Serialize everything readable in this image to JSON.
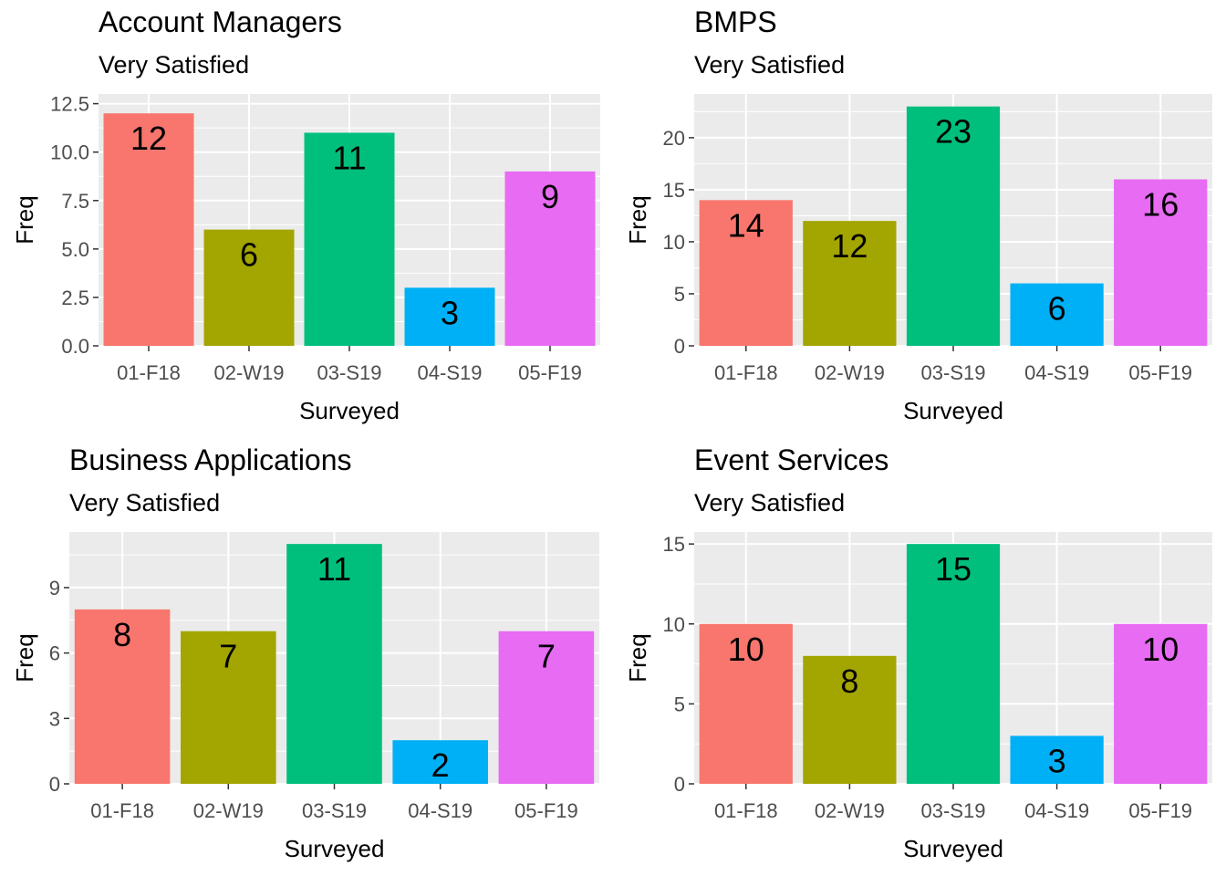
{
  "chart_data": [
    {
      "type": "bar",
      "title": "Account Managers",
      "subtitle": "Very Satisfied",
      "xlabel": "Surveyed",
      "ylabel": "Freq",
      "categories": [
        "01-F18",
        "02-W19",
        "03-S19",
        "04-S19",
        "05-F19"
      ],
      "values": [
        12,
        6,
        11,
        3,
        9
      ],
      "data_labels": [
        "12",
        "6",
        "11",
        "3",
        "9"
      ],
      "yticks": [
        0,
        2.5,
        5,
        7.5,
        10,
        12.5
      ],
      "ytick_labels": [
        "0.0",
        "2.5",
        "5.0",
        "7.5",
        "10.0",
        "12.5"
      ],
      "ylim": [
        0,
        13
      ],
      "grid": true,
      "legend": "none"
    },
    {
      "type": "bar",
      "title": "BMPS",
      "subtitle": "Very Satisfied",
      "xlabel": "Surveyed",
      "ylabel": "Freq",
      "categories": [
        "01-F18",
        "02-W19",
        "03-S19",
        "04-S19",
        "05-F19"
      ],
      "values": [
        14,
        12,
        23,
        6,
        16
      ],
      "data_labels": [
        "14",
        "12",
        "23",
        "6",
        "16"
      ],
      "yticks": [
        0,
        5,
        10,
        15,
        20
      ],
      "ytick_labels": [
        "0",
        "5",
        "10",
        "15",
        "20"
      ],
      "ylim": [
        0,
        24.2
      ],
      "grid": true,
      "legend": "none"
    },
    {
      "type": "bar",
      "title": "Business Applications",
      "subtitle": "Very Satisfied",
      "xlabel": "Surveyed",
      "ylabel": "Freq",
      "categories": [
        "01-F18",
        "02-W19",
        "03-S19",
        "04-S19",
        "05-F19"
      ],
      "values": [
        8,
        7,
        11,
        2,
        7
      ],
      "data_labels": [
        "8",
        "7",
        "11",
        "2",
        "7"
      ],
      "yticks": [
        0,
        3,
        6,
        9
      ],
      "ytick_labels": [
        "0",
        "3",
        "6",
        "9"
      ],
      "ylim": [
        0,
        11.55
      ],
      "grid": true,
      "legend": "none"
    },
    {
      "type": "bar",
      "title": "Event Services",
      "subtitle": "Very Satisfied",
      "xlabel": "Surveyed",
      "ylabel": "Freq",
      "categories": [
        "01-F18",
        "02-W19",
        "03-S19",
        "04-S19",
        "05-F19"
      ],
      "values": [
        10,
        8,
        15,
        3,
        10
      ],
      "data_labels": [
        "10",
        "8",
        "15",
        "3",
        "10"
      ],
      "yticks": [
        0,
        5,
        10,
        15
      ],
      "ytick_labels": [
        "0",
        "5",
        "10",
        "15"
      ],
      "ylim": [
        0,
        15.75
      ],
      "grid": true,
      "legend": "none"
    }
  ],
  "colors": {
    "panel_background": "#ebebeb",
    "grid": "#ffffff",
    "series": [
      "#f8766d",
      "#a3a500",
      "#00bf7d",
      "#00b0f6",
      "#e76bf3"
    ]
  }
}
